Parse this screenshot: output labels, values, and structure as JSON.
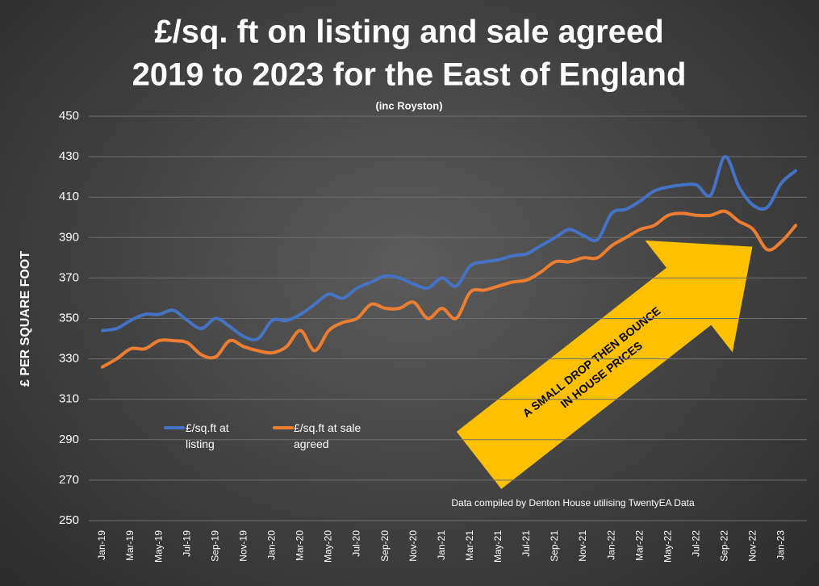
{
  "chart_data": {
    "type": "line",
    "title": [
      "£/sq. ft on listing and sale agreed",
      "2019 to 2023 for the East of England"
    ],
    "subtitle": "(inc Royston)",
    "y_label": "£ PER SQUARE FOOT",
    "note": "Data compiled by Denton House utilising TwentyEA Data",
    "annotation": [
      "A SMALL DROP THEN BOUNCE",
      "IN HOUSE PRICES"
    ],
    "categories": [
      "Jan-19",
      null,
      "Mar-19",
      null,
      "May-19",
      null,
      "Jul-19",
      null,
      "Sep-19",
      null,
      "Nov-19",
      null,
      "Jan-20",
      null,
      "Mar-20",
      null,
      "May-20",
      null,
      "Jul-20",
      null,
      "Sep-20",
      null,
      "Nov-20",
      null,
      "Jan-21",
      null,
      "Mar-21",
      null,
      "May-21",
      null,
      "Jul-21",
      null,
      "Sep-21",
      null,
      "Nov-21",
      null,
      "Jan-22",
      null,
      "Mar-22",
      null,
      "May-22",
      null,
      "Jul-22",
      null,
      "Sep-22",
      null,
      "Nov-22",
      null,
      "Jan-23",
      null
    ],
    "series": [
      {
        "name": "£/sq.ft at listing",
        "color": "#4472c4",
        "values": [
          344,
          345,
          349,
          352,
          352,
          354,
          349,
          345,
          350,
          346,
          341,
          340,
          349,
          349,
          352,
          357,
          362,
          360,
          365,
          368,
          371,
          370,
          367,
          365,
          370,
          366,
          376,
          378,
          379,
          381,
          382,
          386,
          390,
          394,
          391,
          389,
          402,
          404,
          408,
          413,
          415,
          416,
          416,
          411,
          430,
          415,
          406,
          405,
          417,
          423
        ]
      },
      {
        "name": "£/sq.ft at sale agreed",
        "color": "#ed7d31",
        "values": [
          326,
          330,
          335,
          335,
          339,
          339,
          338,
          332,
          331,
          339,
          336,
          334,
          333,
          336,
          344,
          334,
          344,
          348,
          350,
          357,
          355,
          355,
          358,
          350,
          355,
          350,
          363,
          364,
          366,
          368,
          369,
          373,
          378,
          378,
          380,
          380,
          386,
          390,
          394,
          396,
          401,
          402,
          401,
          401,
          403,
          398,
          394,
          384,
          388,
          396
        ]
      }
    ],
    "ylim": [
      250,
      450
    ],
    "yticks": [
      250,
      270,
      290,
      310,
      330,
      350,
      370,
      390,
      410,
      430,
      450
    ],
    "grid": true,
    "annotation_color": "#ffc000"
  }
}
